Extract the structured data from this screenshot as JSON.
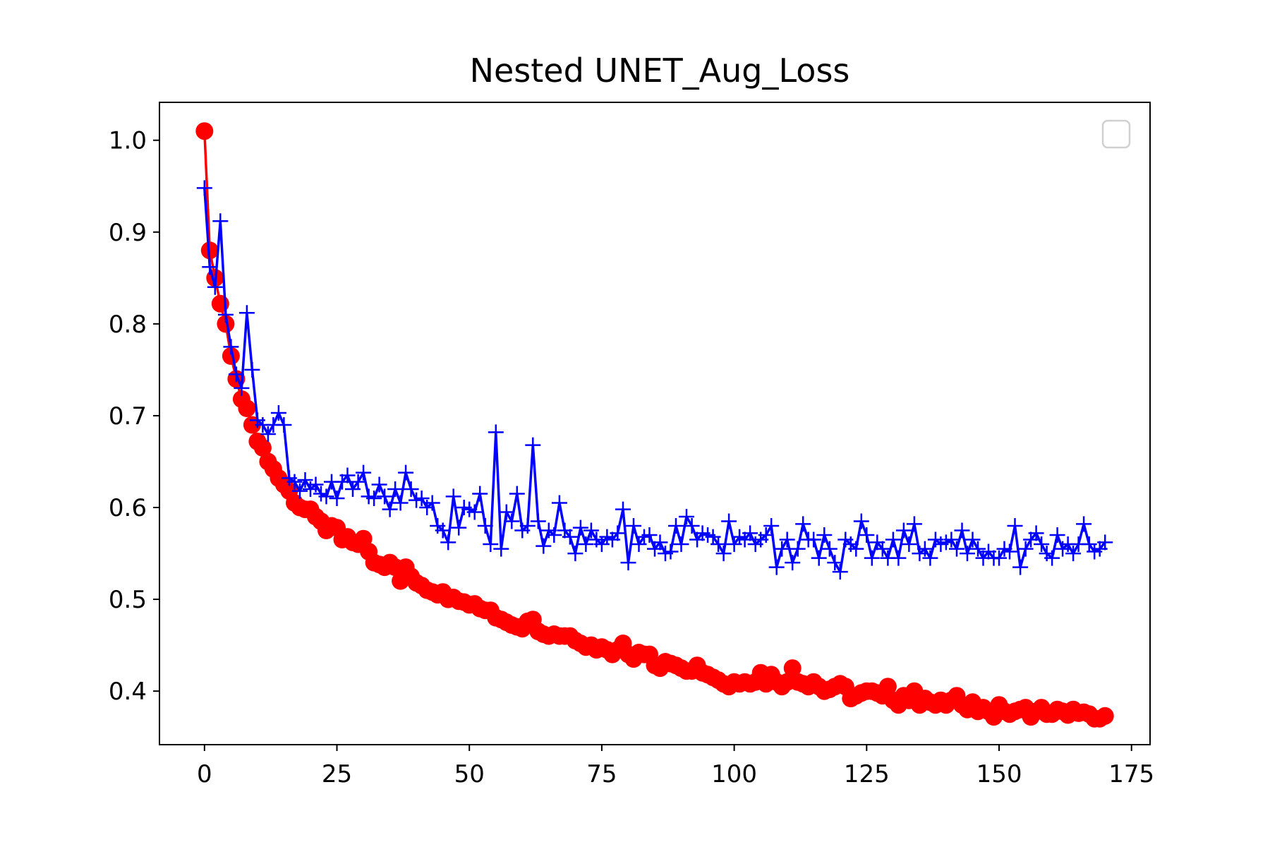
{
  "chart_data": {
    "type": "line",
    "title": "Nested UNET_Aug_Loss",
    "xlabel": "",
    "ylabel": "",
    "xlim": [
      -8.5,
      178.5
    ],
    "ylim": [
      0.3417,
      1.0413
    ],
    "x_ticks": [
      0,
      25,
      50,
      75,
      100,
      125,
      150,
      175
    ],
    "y_ticks": [
      0.4,
      0.5,
      0.6,
      0.7,
      0.8,
      0.9,
      1.0
    ],
    "x_tick_labels": [
      "0",
      "25",
      "50",
      "75",
      "100",
      "125",
      "150",
      "175"
    ],
    "y_tick_labels": [
      "0.4",
      "0.5",
      "0.6",
      "0.7",
      "0.8",
      "0.9",
      "1.0"
    ],
    "grid": false,
    "legend": {
      "position": "upper-right",
      "entries": []
    },
    "series": [
      {
        "color": "#ff0000",
        "marker": "circle",
        "x": [
          0,
          1,
          2,
          3,
          4,
          5,
          6,
          7,
          8,
          9,
          10,
          11,
          12,
          13,
          14,
          15,
          16,
          17,
          18,
          19,
          20,
          21,
          22,
          23,
          24,
          25,
          26,
          27,
          28,
          29,
          30,
          31,
          32,
          33,
          34,
          35,
          36,
          37,
          38,
          39,
          40,
          41,
          42,
          43,
          44,
          45,
          46,
          47,
          48,
          49,
          50,
          51,
          52,
          53,
          54,
          55,
          56,
          57,
          58,
          59,
          60,
          61,
          62,
          63,
          64,
          65,
          66,
          67,
          68,
          69,
          70,
          71,
          72,
          73,
          74,
          75,
          76,
          77,
          78,
          79,
          80,
          81,
          82,
          83,
          84,
          85,
          86,
          87,
          88,
          89,
          90,
          91,
          92,
          93,
          94,
          95,
          96,
          97,
          98,
          99,
          100,
          101,
          102,
          103,
          104,
          105,
          106,
          107,
          108,
          109,
          110,
          111,
          112,
          113,
          114,
          115,
          116,
          117,
          118,
          119,
          120,
          121,
          122,
          123,
          124,
          125,
          126,
          127,
          128,
          129,
          130,
          131,
          132,
          133,
          134,
          135,
          136,
          137,
          138,
          139,
          140,
          141,
          142,
          143,
          144,
          145,
          146,
          147,
          148,
          149,
          150,
          151,
          152,
          153,
          154,
          155,
          156,
          157,
          158,
          159,
          160,
          161,
          162,
          163,
          164,
          165,
          166,
          167,
          168,
          169,
          170
        ],
        "values": [
          1.01,
          0.88,
          0.85,
          0.822,
          0.8,
          0.765,
          0.74,
          0.718,
          0.708,
          0.69,
          0.672,
          0.665,
          0.65,
          0.642,
          0.632,
          0.625,
          0.618,
          0.605,
          0.6,
          0.598,
          0.598,
          0.59,
          0.585,
          0.575,
          0.58,
          0.578,
          0.565,
          0.568,
          0.562,
          0.56,
          0.566,
          0.552,
          0.54,
          0.538,
          0.535,
          0.54,
          0.535,
          0.52,
          0.535,
          0.525,
          0.518,
          0.515,
          0.51,
          0.508,
          0.505,
          0.508,
          0.5,
          0.502,
          0.498,
          0.497,
          0.494,
          0.495,
          0.49,
          0.488,
          0.488,
          0.48,
          0.478,
          0.475,
          0.472,
          0.47,
          0.468,
          0.476,
          0.478,
          0.465,
          0.462,
          0.46,
          0.462,
          0.46,
          0.46,
          0.46,
          0.455,
          0.452,
          0.448,
          0.45,
          0.445,
          0.448,
          0.445,
          0.44,
          0.445,
          0.452,
          0.44,
          0.435,
          0.442,
          0.44,
          0.44,
          0.428,
          0.425,
          0.432,
          0.43,
          0.428,
          0.425,
          0.422,
          0.422,
          0.428,
          0.42,
          0.418,
          0.415,
          0.412,
          0.408,
          0.405,
          0.41,
          0.408,
          0.41,
          0.408,
          0.41,
          0.42,
          0.408,
          0.418,
          0.41,
          0.405,
          0.41,
          0.425,
          0.41,
          0.408,
          0.405,
          0.41,
          0.405,
          0.4,
          0.402,
          0.405,
          0.408,
          0.405,
          0.392,
          0.395,
          0.398,
          0.4,
          0.4,
          0.398,
          0.395,
          0.405,
          0.39,
          0.385,
          0.395,
          0.39,
          0.4,
          0.385,
          0.392,
          0.388,
          0.385,
          0.39,
          0.385,
          0.39,
          0.395,
          0.385,
          0.38,
          0.388,
          0.378,
          0.382,
          0.378,
          0.372,
          0.385,
          0.378,
          0.375,
          0.378,
          0.38,
          0.382,
          0.372,
          0.378,
          0.382,
          0.375,
          0.375,
          0.38,
          0.378,
          0.374,
          0.38,
          0.376,
          0.377,
          0.375,
          0.37,
          0.37,
          0.373
        ]
      },
      {
        "color": "#0000ff",
        "marker": "plus",
        "x": [
          0,
          1,
          2,
          3,
          4,
          5,
          6,
          7,
          8,
          9,
          10,
          11,
          12,
          13,
          14,
          15,
          16,
          17,
          18,
          19,
          20,
          21,
          22,
          23,
          24,
          25,
          26,
          27,
          28,
          29,
          30,
          31,
          32,
          33,
          34,
          35,
          36,
          37,
          38,
          39,
          40,
          41,
          42,
          43,
          44,
          45,
          46,
          47,
          48,
          49,
          50,
          51,
          52,
          53,
          54,
          55,
          56,
          57,
          58,
          59,
          60,
          61,
          62,
          63,
          64,
          65,
          66,
          67,
          68,
          69,
          70,
          71,
          72,
          73,
          74,
          75,
          76,
          77,
          78,
          79,
          80,
          81,
          82,
          83,
          84,
          85,
          86,
          87,
          88,
          89,
          90,
          91,
          92,
          93,
          94,
          95,
          96,
          97,
          98,
          99,
          100,
          101,
          102,
          103,
          104,
          105,
          106,
          107,
          108,
          109,
          110,
          111,
          112,
          113,
          114,
          115,
          116,
          117,
          118,
          119,
          120,
          121,
          122,
          123,
          124,
          125,
          126,
          127,
          128,
          129,
          130,
          131,
          132,
          133,
          134,
          135,
          136,
          137,
          138,
          139,
          140,
          141,
          142,
          143,
          144,
          145,
          146,
          147,
          148,
          149,
          150,
          151,
          152,
          153,
          154,
          155,
          156,
          157,
          158,
          159,
          160,
          161,
          162,
          163,
          164,
          165,
          166,
          167,
          168,
          169,
          170
        ],
        "values": [
          0.948,
          0.862,
          0.84,
          0.912,
          0.81,
          0.775,
          0.745,
          0.73,
          0.812,
          0.75,
          0.695,
          0.69,
          0.68,
          0.69,
          0.703,
          0.69,
          0.632,
          0.628,
          0.618,
          0.63,
          0.62,
          0.625,
          0.615,
          0.612,
          0.628,
          0.61,
          0.628,
          0.635,
          0.62,
          0.628,
          0.638,
          0.612,
          0.61,
          0.625,
          0.612,
          0.598,
          0.62,
          0.605,
          0.638,
          0.62,
          0.608,
          0.61,
          0.6,
          0.605,
          0.58,
          0.575,
          0.562,
          0.612,
          0.578,
          0.6,
          0.598,
          0.595,
          0.615,
          0.58,
          0.56,
          0.682,
          0.555,
          0.595,
          0.585,
          0.615,
          0.575,
          0.58,
          0.668,
          0.585,
          0.558,
          0.575,
          0.57,
          0.605,
          0.575,
          0.568,
          0.55,
          0.578,
          0.56,
          0.575,
          0.565,
          0.56,
          0.568,
          0.565,
          0.572,
          0.598,
          0.54,
          0.58,
          0.56,
          0.568,
          0.57,
          0.555,
          0.562,
          0.55,
          0.552,
          0.58,
          0.56,
          0.59,
          0.58,
          0.565,
          0.572,
          0.57,
          0.568,
          0.56,
          0.55,
          0.585,
          0.56,
          0.568,
          0.565,
          0.572,
          0.56,
          0.565,
          0.57,
          0.58,
          0.535,
          0.555,
          0.565,
          0.54,
          0.555,
          0.582,
          0.565,
          0.565,
          0.545,
          0.57,
          0.555,
          0.54,
          0.53,
          0.565,
          0.56,
          0.555,
          0.585,
          0.57,
          0.545,
          0.562,
          0.555,
          0.545,
          0.565,
          0.545,
          0.575,
          0.56,
          0.582,
          0.55,
          0.555,
          0.545,
          0.565,
          0.56,
          0.562,
          0.565,
          0.555,
          0.575,
          0.55,
          0.565,
          0.555,
          0.545,
          0.552,
          0.545,
          0.545,
          0.555,
          0.552,
          0.58,
          0.535,
          0.555,
          0.565,
          0.572,
          0.56,
          0.55,
          0.545,
          0.57,
          0.555,
          0.56,
          0.55,
          0.56,
          0.582,
          0.56,
          0.552,
          0.555,
          0.562
        ]
      }
    ]
  }
}
